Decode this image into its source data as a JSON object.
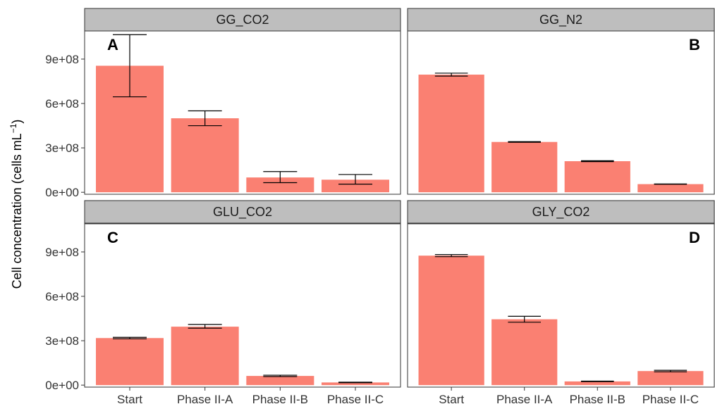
{
  "chart_data": {
    "type": "bar",
    "ylabel": "Cell concentration (cells mL",
    "ylabel_unit_exponent": "−1",
    "ylabel_close": ")",
    "categories": [
      "Start",
      "Phase II-A",
      "Phase II-B",
      "Phase II-C"
    ],
    "ylim": [
      0,
      1100000000.0
    ],
    "yticks": [
      0,
      300000000,
      600000000,
      900000000
    ],
    "ytick_labels": [
      "0e+00",
      "3e+08",
      "6e+08",
      "9e+08"
    ],
    "grid": false,
    "panels": [
      {
        "title": "GG_CO2",
        "tag": "A",
        "tag_side": "left",
        "values": [
          855000000,
          500000000,
          100000000,
          85000000
        ],
        "err_low": [
          645000000,
          450000000,
          65000000,
          55000000
        ],
        "err_high": [
          1065000000,
          550000000,
          140000000,
          120000000
        ]
      },
      {
        "title": "GG_N2",
        "tag": "B",
        "tag_side": "right",
        "values": [
          795000000,
          340000000,
          210000000,
          55000000
        ],
        "err_low": [
          785000000,
          338000000,
          207000000,
          54000000
        ],
        "err_high": [
          805000000,
          342000000,
          213000000,
          56000000
        ]
      },
      {
        "title": "GLU_CO2",
        "tag": "C",
        "tag_side": "left",
        "values": [
          318000000,
          395000000,
          62000000,
          18000000
        ],
        "err_low": [
          313000000,
          385000000,
          58000000,
          16000000
        ],
        "err_high": [
          323000000,
          410000000,
          67000000,
          20000000
        ]
      },
      {
        "title": "GLY_CO2",
        "tag": "D",
        "tag_side": "right",
        "values": [
          875000000,
          445000000,
          25000000,
          95000000
        ],
        "err_low": [
          868000000,
          425000000,
          24000000,
          90000000
        ],
        "err_high": [
          882000000,
          465000000,
          27000000,
          100000000
        ]
      }
    ]
  },
  "colors": {
    "bar": "#FA8072",
    "strip": "#BEBEBE",
    "panel_border": "#333333",
    "error_bar": "#000000",
    "axis": "#333333"
  }
}
